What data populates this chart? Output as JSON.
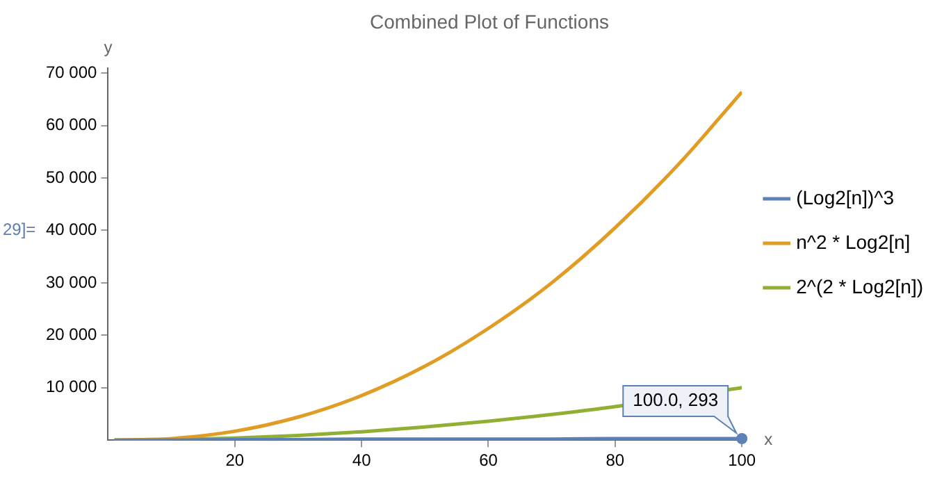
{
  "chart_data": {
    "type": "line",
    "title": "Combined Plot of Functions",
    "xlabel": "x",
    "ylabel": "y",
    "x": [
      1,
      5,
      10,
      20,
      30,
      40,
      50,
      60,
      70,
      80,
      90,
      100
    ],
    "series": [
      {
        "name": "(Log2[n])^3",
        "color": "#5e81b5",
        "values": [
          0,
          0,
          0,
          100,
          100,
          200,
          200,
          200,
          200,
          300,
          300,
          293
        ]
      },
      {
        "name": "n^2 * Log2[n]",
        "color": "#e19c24",
        "values": [
          0,
          100,
          300,
          1700,
          4400,
          8500,
          14100,
          21300,
          30000,
          40500,
          52600,
          66400
        ]
      },
      {
        "name": "2^(2 * Log2[n])",
        "color": "#8fb032",
        "values": [
          0,
          0,
          100,
          400,
          900,
          1600,
          2500,
          3600,
          4900,
          6400,
          null,
          10000
        ]
      }
    ],
    "xlim": [
      0,
      100
    ],
    "xticks": [
      20,
      40,
      60,
      80,
      100
    ],
    "ylim": [
      0,
      71000
    ],
    "yticks": [
      {
        "value": 10000,
        "label": "10 000"
      },
      {
        "value": 20000,
        "label": "20 000"
      },
      {
        "value": 30000,
        "label": "30 000"
      },
      {
        "value": 40000,
        "label": "40 000"
      },
      {
        "value": 50000,
        "label": "50 000"
      },
      {
        "value": 60000,
        "label": "60 000"
      },
      {
        "value": 70000,
        "label": "70 000"
      }
    ],
    "annotations": [
      {
        "text": "100.0, 293",
        "x": 100,
        "y": 293
      },
      "29]="
    ],
    "grid": false,
    "legend": "right",
    "marker": "none",
    "line_style": "solid"
  }
}
